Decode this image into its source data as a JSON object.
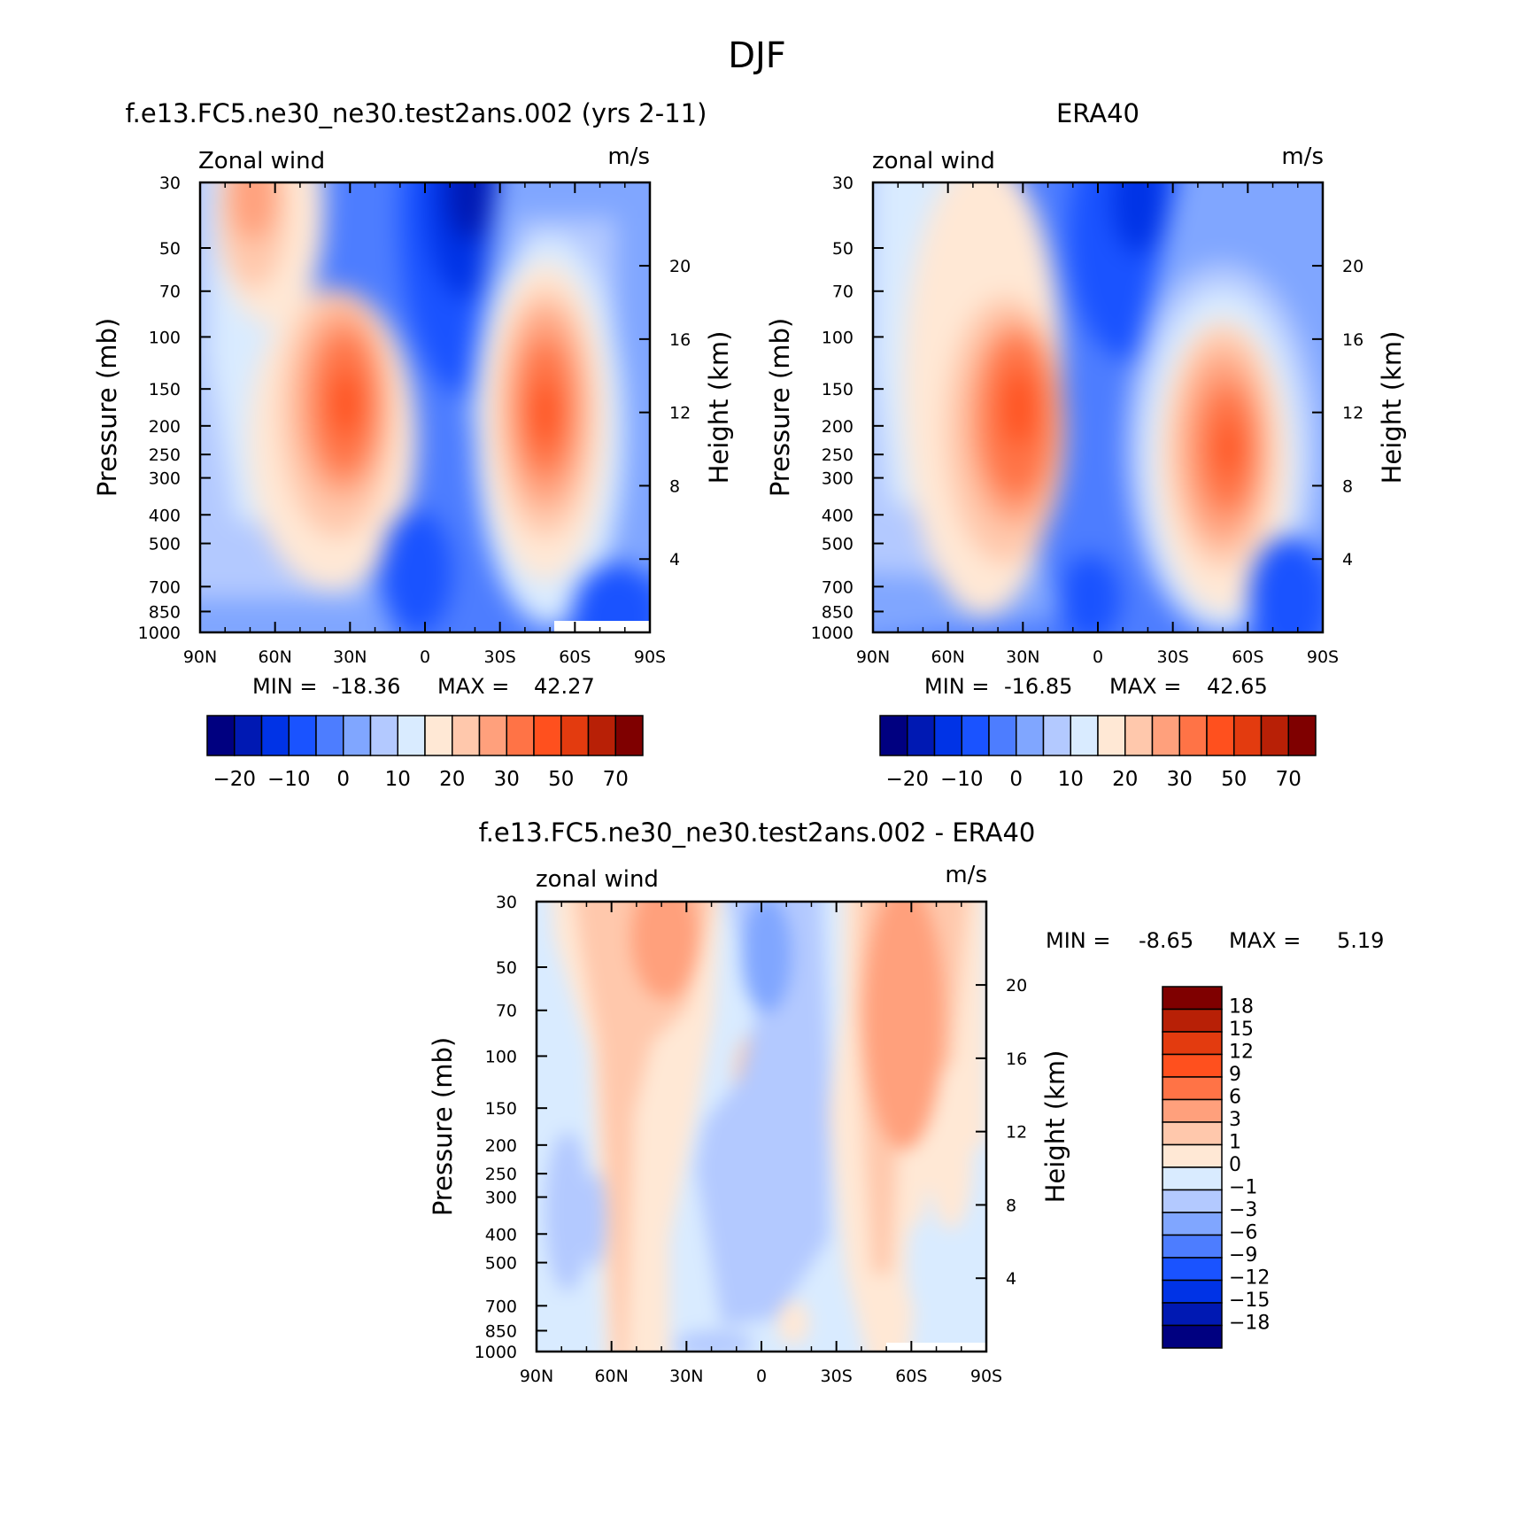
{
  "figure_title": "DJF",
  "chart_data": [
    {
      "type": "heatmap",
      "title": "f.e13.FC5.ne30_ne30.test2ans.002 (yrs 2-11)",
      "variable": "Zonal wind",
      "units": "m/s",
      "ylabel": "Pressure (mb)",
      "y2label": "Height (km)",
      "x_ticks": [
        "90N",
        "60N",
        "30N",
        "0",
        "30S",
        "60S",
        "90S"
      ],
      "y_ticks": [
        30,
        50,
        70,
        100,
        150,
        200,
        250,
        300,
        400,
        500,
        700,
        850,
        1000
      ],
      "y2_ticks": [
        20,
        16,
        12,
        8,
        4
      ],
      "ylim": [
        1000,
        30
      ],
      "min_label": "MIN =",
      "min": "-18.36",
      "max_label": "MAX =",
      "max": "42.27",
      "colorbar": {
        "orientation": "horizontal",
        "colors": [
          "#000080",
          "#0019b3",
          "#0033e6",
          "#1a53ff",
          "#4d7dff",
          "#80a6ff",
          "#b3c9ff",
          "#d9ebff",
          "#ffe8d5",
          "#ffc8ac",
          "#ffa07c",
          "#ff7346",
          "#ff501e",
          "#e33b0f",
          "#b82006",
          "#7f0000"
        ],
        "labels": [
          "-20",
          "-10",
          "0",
          "10",
          "20",
          "30",
          "50",
          "70"
        ]
      }
    },
    {
      "type": "heatmap",
      "title": "ERA40",
      "variable": "zonal wind",
      "units": "m/s",
      "ylabel": "Pressure (mb)",
      "y2label": "Height (km)",
      "x_ticks": [
        "90N",
        "60N",
        "30N",
        "0",
        "30S",
        "60S",
        "90S"
      ],
      "y_ticks": [
        30,
        50,
        70,
        100,
        150,
        200,
        250,
        300,
        400,
        500,
        700,
        850,
        1000
      ],
      "y2_ticks": [
        20,
        16,
        12,
        8,
        4
      ],
      "ylim": [
        1000,
        30
      ],
      "min_label": "MIN =",
      "min": "-16.85",
      "max_label": "MAX =",
      "max": "42.65",
      "colorbar": {
        "orientation": "horizontal",
        "colors": [
          "#000080",
          "#0019b3",
          "#0033e6",
          "#1a53ff",
          "#4d7dff",
          "#80a6ff",
          "#b3c9ff",
          "#d9ebff",
          "#ffe8d5",
          "#ffc8ac",
          "#ffa07c",
          "#ff7346",
          "#ff501e",
          "#e33b0f",
          "#b82006",
          "#7f0000"
        ],
        "labels": [
          "-20",
          "-10",
          "0",
          "10",
          "20",
          "30",
          "50",
          "70"
        ]
      }
    },
    {
      "type": "heatmap",
      "title": "f.e13.FC5.ne30_ne30.test2ans.002 - ERA40",
      "variable": "zonal wind",
      "units": "m/s",
      "ylabel": "Pressure (mb)",
      "y2label": "Height (km)",
      "x_ticks": [
        "90N",
        "60N",
        "30N",
        "0",
        "30S",
        "60S",
        "90S"
      ],
      "y_ticks": [
        30,
        50,
        70,
        100,
        150,
        200,
        250,
        300,
        400,
        500,
        700,
        850,
        1000
      ],
      "y2_ticks": [
        20,
        16,
        12,
        8,
        4
      ],
      "ylim": [
        1000,
        30
      ],
      "min_label": "MIN =",
      "min": "-8.65",
      "max_label": "MAX =",
      "max": "5.19",
      "colorbar": {
        "orientation": "vertical",
        "colors": [
          "#7f0000",
          "#b82006",
          "#e33b0f",
          "#ff501e",
          "#ff7346",
          "#ffa07c",
          "#ffc8ac",
          "#ffe8d5",
          "#d9ebff",
          "#b3c9ff",
          "#80a6ff",
          "#4d7dff",
          "#1a53ff",
          "#0033e6",
          "#0019b3",
          "#000080"
        ],
        "labels": [
          "18",
          "15",
          "12",
          "9",
          "6",
          "3",
          "1",
          "0",
          "-1",
          "-3",
          "-6",
          "-9",
          "-12",
          "-15",
          "-18"
        ]
      }
    }
  ]
}
